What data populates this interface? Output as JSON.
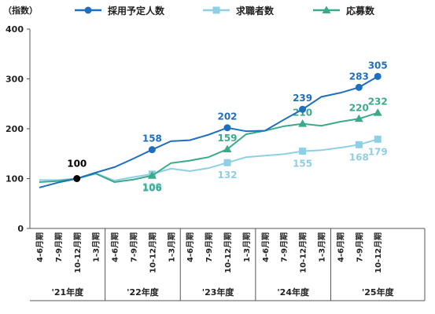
{
  "chart_data": {
    "type": "line",
    "unit_label": "（指数）",
    "y_axis": {
      "min": 0,
      "max": 400,
      "ticks": [
        0,
        100,
        200,
        300,
        400
      ]
    },
    "categories": [
      "4-6月期",
      "7-9月期",
      "10-12月期",
      "1-3月期",
      "4-6月期",
      "7-9月期",
      "10-12月期",
      "1-3月期",
      "4-6月期",
      "7-9月期",
      "10-12月期",
      "1-3月期",
      "4-6月期",
      "7-9月期",
      "10-12月期",
      "1-3月期",
      "4-6月期",
      "7-9月期",
      "10-12月期"
    ],
    "groups": [
      {
        "label": "'21年度",
        "start": 0,
        "count": 4
      },
      {
        "label": "'22年度",
        "start": 4,
        "count": 4
      },
      {
        "label": "'23年度",
        "start": 8,
        "count": 4
      },
      {
        "label": "'24年度",
        "start": 12,
        "count": 4
      },
      {
        "label": "'25年度",
        "start": 16,
        "count": 3
      }
    ],
    "series": [
      {
        "name": "採用予定人数",
        "color": "#1f6fbf",
        "marker": "circle",
        "values": [
          82,
          92,
          100,
          112,
          123,
          140,
          158,
          175,
          177,
          188,
          202,
          195,
          196,
          218,
          239,
          264,
          272,
          283,
          305
        ],
        "labels": {
          "6": "158",
          "10": "202",
          "14": "239",
          "17": "283",
          "18": "305"
        },
        "label_pos": "above"
      },
      {
        "name": "求職者数",
        "color": "#8ecfe6",
        "marker": "square",
        "values": [
          97,
          97,
          100,
          111,
          96,
          103,
          109,
          120,
          115,
          121,
          132,
          143,
          146,
          149,
          155,
          157,
          162,
          168,
          179
        ],
        "labels": {
          "6": "109",
          "10": "132",
          "14": "155",
          "17": "168",
          "18": "179"
        },
        "label_pos": "below"
      },
      {
        "name": "応募数",
        "color": "#3aaa8a",
        "marker": "triangle",
        "values": [
          93,
          95,
          100,
          110,
          93,
          98,
          106,
          131,
          136,
          143,
          159,
          189,
          196,
          205,
          210,
          206,
          214,
          220,
          232
        ],
        "labels": {
          "6": "106",
          "10": "159",
          "14": "210",
          "17": "220",
          "18": "232"
        },
        "label_pos": "mixed"
      }
    ],
    "base_point": {
      "index": 2,
      "value": 100,
      "label": "100",
      "color": "#000000"
    },
    "legend": {
      "placement": "top"
    },
    "grid": {
      "horizontal": false,
      "vertical": false
    }
  }
}
